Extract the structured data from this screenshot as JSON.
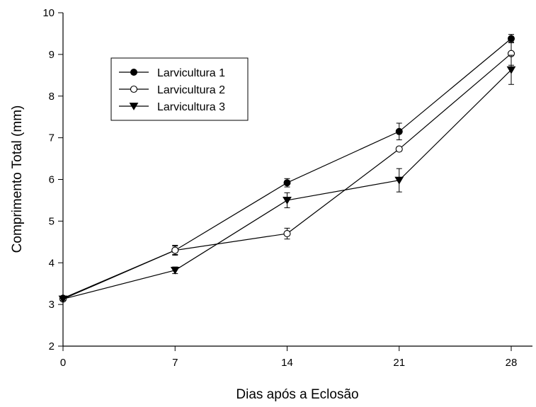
{
  "chart_data": {
    "type": "line",
    "xlabel": "Dias após a Eclosão",
    "ylabel": "Comprimento Total (mm)",
    "x": [
      0,
      7,
      14,
      21,
      28
    ],
    "xticks": [
      "0",
      "7",
      "14",
      "21",
      "28"
    ],
    "yticks": [
      "2",
      "3",
      "4",
      "5",
      "6",
      "7",
      "8",
      "9",
      "10"
    ],
    "xlim": [
      0,
      28
    ],
    "ylim": [
      2,
      10
    ],
    "grid": false,
    "legend_position": "upper-left",
    "series": [
      {
        "name": "Larvicultura 1",
        "marker": "filled-circle",
        "values": [
          3.15,
          4.3,
          5.92,
          7.15,
          9.38
        ],
        "error": [
          0.03,
          0.1,
          0.1,
          0.2,
          0.1
        ]
      },
      {
        "name": "Larvicultura 2",
        "marker": "open-circle",
        "values": [
          3.13,
          4.3,
          4.7,
          6.73,
          9.02
        ],
        "error": [
          0.03,
          0.12,
          0.13,
          0.05,
          0.28
        ]
      },
      {
        "name": "Larvicultura 3",
        "marker": "filled-triangle-down",
        "values": [
          3.13,
          3.82,
          5.5,
          5.98,
          8.63
        ],
        "error": [
          0.03,
          0.08,
          0.18,
          0.28,
          0.35
        ]
      }
    ]
  }
}
